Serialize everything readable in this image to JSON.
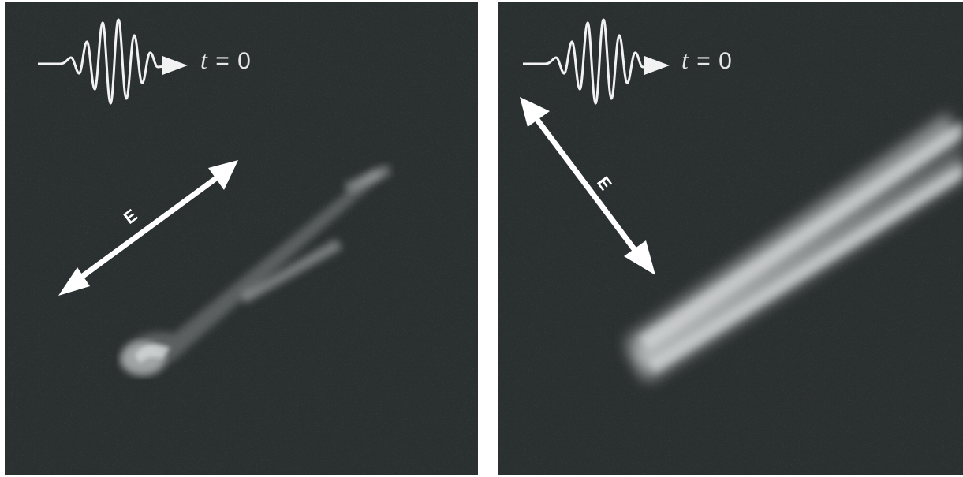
{
  "figure": {
    "panels": [
      {
        "id": "left",
        "pulse_time_variable": "t",
        "pulse_time_value": "= 0",
        "field_label": "E",
        "field_direction": "diagonal-up-right",
        "background_color": "#2a2f30",
        "emission_color": "#e8e8e8"
      },
      {
        "id": "right",
        "pulse_time_variable": "t",
        "pulse_time_value": "= 0",
        "field_label": "E",
        "field_direction": "diagonal-down-right",
        "background_color": "#2a2f30",
        "emission_color": "#e8e8e8"
      }
    ]
  }
}
